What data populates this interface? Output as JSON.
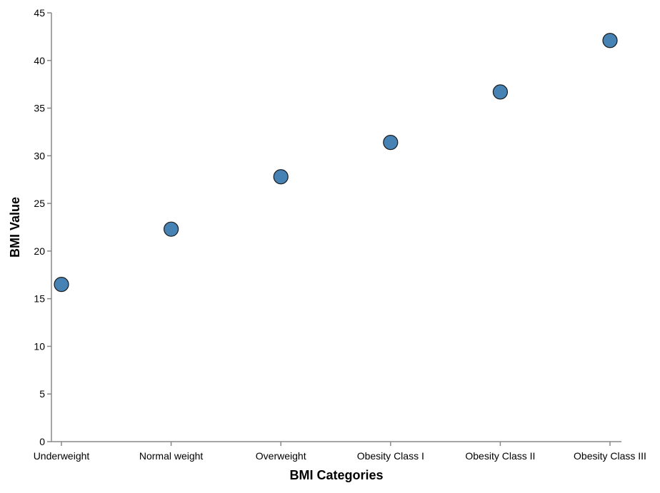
{
  "chart_data": {
    "type": "scatter",
    "categories": [
      "Underweight",
      "Normal weight",
      "Overweight",
      "Obesity Class I",
      "Obesity Class II",
      "Obesity Class III"
    ],
    "values": [
      16.5,
      22.3,
      27.8,
      31.4,
      36.7,
      42.1
    ],
    "xlabel": "BMI Categories",
    "ylabel": "BMI Value",
    "ylim": [
      0,
      45
    ],
    "yticks": [
      0,
      5,
      10,
      15,
      20,
      25,
      30,
      35,
      40,
      45
    ],
    "grid": false,
    "legend": "none",
    "point_color": "#4682b4",
    "point_stroke": "#1a1a1a"
  }
}
